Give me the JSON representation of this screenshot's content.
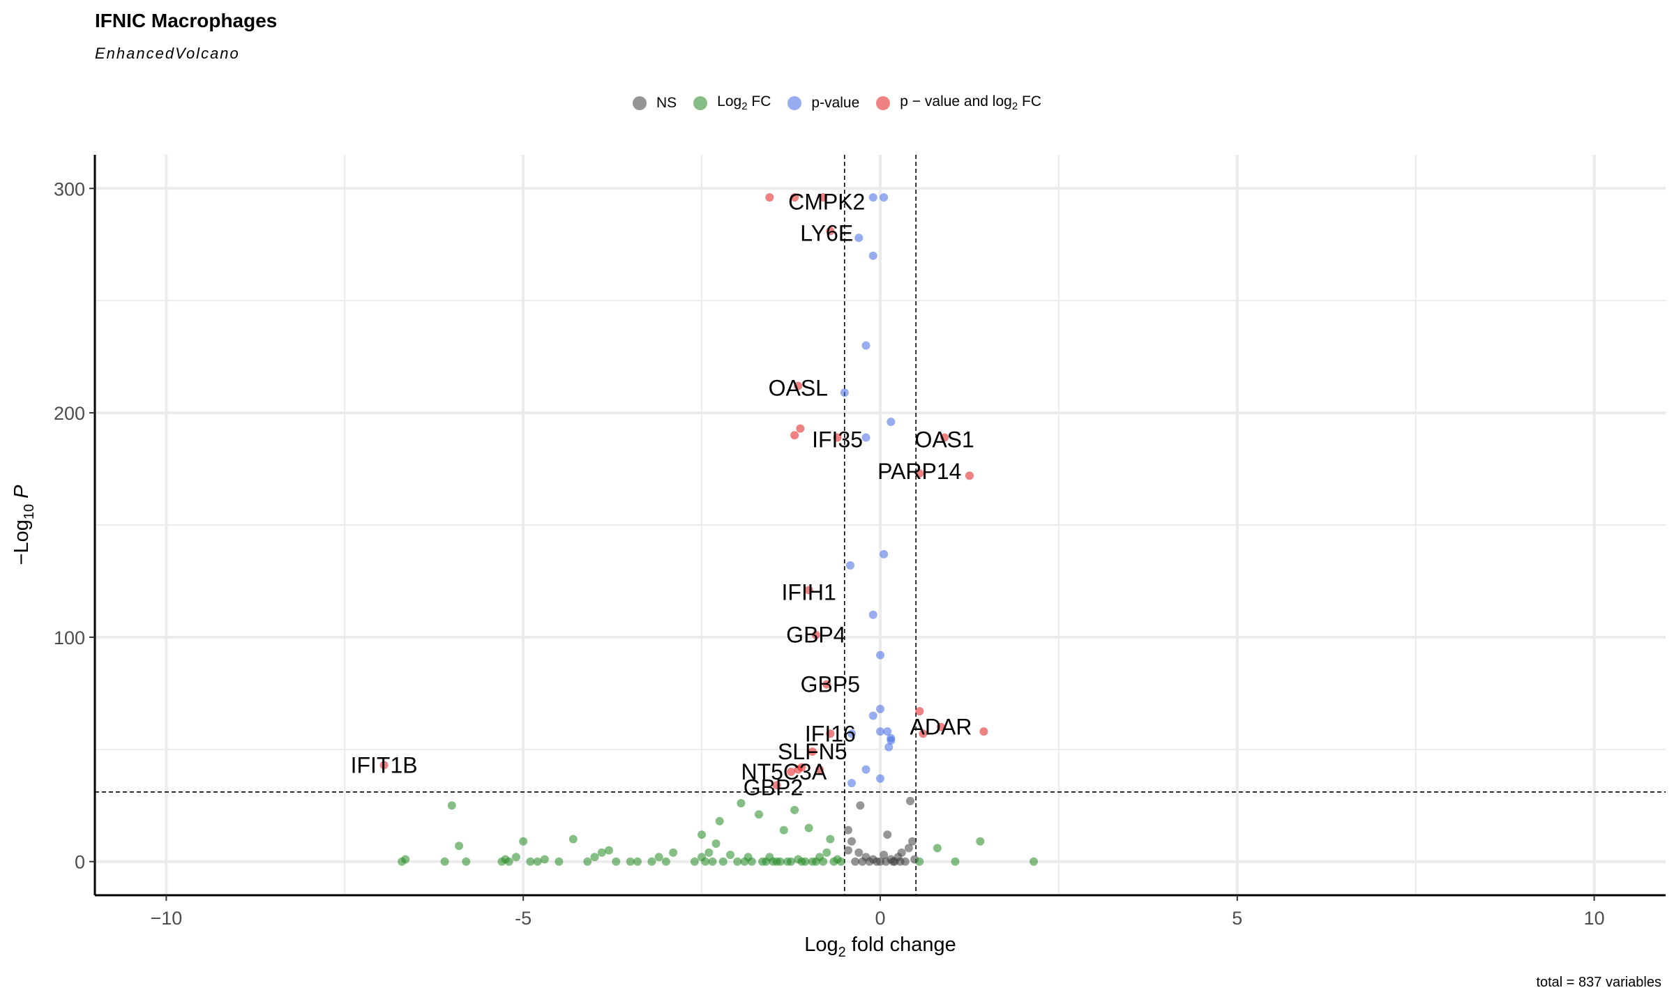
{
  "chart_data": {
    "type": "scatter",
    "title": "IFNIC Macrophages",
    "subtitle": "EnhancedVolcano",
    "caption": "total = 837 variables",
    "xlabel": {
      "prefix": "Log",
      "sub": "2",
      "suffix": " fold change"
    },
    "ylabel": {
      "prefix": "−Log",
      "sub": "10",
      "suffix": " P"
    },
    "xlim": [
      -11,
      11
    ],
    "ylim": [
      -15,
      315
    ],
    "x_ticks": [
      -10,
      -5,
      0,
      5,
      10
    ],
    "x_tick_labels": [
      "−10",
      "-5",
      "0",
      "5",
      "10"
    ],
    "y_ticks": [
      0,
      100,
      200,
      300
    ],
    "y_tick_labels": [
      "0",
      "100",
      "200",
      "300"
    ],
    "fc_cutoffs": [
      -0.5,
      0.5
    ],
    "p_cutoff": 31,
    "legend_position": "top",
    "legend": [
      {
        "key": "NS",
        "text": "NS",
        "sub": "",
        "suffix": "",
        "color": "#404040"
      },
      {
        "key": "FC",
        "text": "Log",
        "sub": "2",
        "suffix": " FC",
        "color": "#228B22"
      },
      {
        "key": "P",
        "text": "p-value",
        "sub": "",
        "suffix": "",
        "color": "#4169E1"
      },
      {
        "key": "PFC",
        "text": "p − value and log",
        "sub": "2",
        "suffix": " FC",
        "color": "#E41A1C"
      }
    ],
    "series": [
      {
        "name": "NS",
        "color": "#404040",
        "points": [
          [
            -0.45,
            14
          ],
          [
            -0.45,
            5
          ],
          [
            -0.3,
            4
          ],
          [
            -0.28,
            25
          ],
          [
            -0.2,
            2
          ],
          [
            -0.1,
            1
          ],
          [
            -0.05,
            0
          ],
          [
            0.0,
            0
          ],
          [
            0.05,
            3
          ],
          [
            0.1,
            12
          ],
          [
            0.15,
            1
          ],
          [
            0.2,
            0
          ],
          [
            0.25,
            2
          ],
          [
            0.3,
            4
          ],
          [
            0.35,
            0
          ],
          [
            0.4,
            6
          ],
          [
            0.42,
            27
          ],
          [
            0.45,
            9
          ],
          [
            0.48,
            1
          ],
          [
            -0.4,
            9
          ],
          [
            -0.15,
            0
          ],
          [
            0.08,
            0
          ],
          [
            -0.35,
            0
          ],
          [
            0.28,
            0
          ],
          [
            -0.25,
            0
          ],
          [
            0.18,
            0
          ]
        ]
      },
      {
        "name": "Log2 FC",
        "color": "#228B22",
        "points": [
          [
            -6.7,
            0
          ],
          [
            -6.65,
            1
          ],
          [
            -6.1,
            0
          ],
          [
            -6.0,
            25
          ],
          [
            -5.9,
            7
          ],
          [
            -5.8,
            0
          ],
          [
            -5.3,
            0
          ],
          [
            -5.25,
            1
          ],
          [
            -5.2,
            0
          ],
          [
            -5.1,
            2
          ],
          [
            -5.0,
            9
          ],
          [
            -4.9,
            0
          ],
          [
            -4.8,
            0
          ],
          [
            -4.7,
            1
          ],
          [
            -4.5,
            0
          ],
          [
            -4.3,
            10
          ],
          [
            -4.1,
            0
          ],
          [
            -4.0,
            2
          ],
          [
            -3.9,
            4
          ],
          [
            -3.8,
            5
          ],
          [
            -3.7,
            0
          ],
          [
            -3.5,
            0
          ],
          [
            -3.4,
            0
          ],
          [
            -3.2,
            0
          ],
          [
            -3.1,
            2
          ],
          [
            -3.0,
            0
          ],
          [
            -2.9,
            4
          ],
          [
            -2.6,
            0
          ],
          [
            -2.5,
            2
          ],
          [
            -2.5,
            12
          ],
          [
            -2.45,
            0
          ],
          [
            -2.4,
            4
          ],
          [
            -2.35,
            0
          ],
          [
            -2.3,
            8
          ],
          [
            -2.25,
            18
          ],
          [
            -2.2,
            0
          ],
          [
            -2.1,
            3
          ],
          [
            -2.0,
            0
          ],
          [
            -1.95,
            26
          ],
          [
            -1.9,
            0
          ],
          [
            -1.85,
            2
          ],
          [
            -1.8,
            0
          ],
          [
            -1.7,
            21
          ],
          [
            -1.65,
            0
          ],
          [
            -1.6,
            0
          ],
          [
            -1.55,
            2
          ],
          [
            -1.5,
            0
          ],
          [
            -1.45,
            0
          ],
          [
            -1.4,
            0
          ],
          [
            -1.35,
            14
          ],
          [
            -1.3,
            0
          ],
          [
            -1.25,
            0
          ],
          [
            -1.2,
            23
          ],
          [
            -1.15,
            1
          ],
          [
            -1.1,
            0
          ],
          [
            -1.05,
            0
          ],
          [
            -1.0,
            15
          ],
          [
            -0.95,
            0
          ],
          [
            -0.9,
            0
          ],
          [
            -0.85,
            2
          ],
          [
            -0.8,
            0
          ],
          [
            -0.75,
            4
          ],
          [
            -0.7,
            10
          ],
          [
            -0.65,
            0
          ],
          [
            -0.6,
            1
          ],
          [
            -0.55,
            0
          ],
          [
            0.55,
            0
          ],
          [
            0.8,
            6
          ],
          [
            1.05,
            0
          ],
          [
            1.4,
            9
          ],
          [
            2.15,
            0
          ]
        ]
      },
      {
        "name": "p-value",
        "color": "#4169E1",
        "points": [
          [
            -0.1,
            296
          ],
          [
            0.05,
            296
          ],
          [
            -0.3,
            278
          ],
          [
            -0.1,
            270
          ],
          [
            -0.2,
            230
          ],
          [
            -0.5,
            209
          ],
          [
            0.15,
            196
          ],
          [
            -0.2,
            189
          ],
          [
            0.05,
            137
          ],
          [
            -0.42,
            132
          ],
          [
            -0.1,
            110
          ],
          [
            0.0,
            92
          ],
          [
            0.0,
            68
          ],
          [
            -0.1,
            65
          ],
          [
            0.0,
            58
          ],
          [
            0.1,
            58
          ],
          [
            0.15,
            55
          ],
          [
            -0.4,
            57
          ],
          [
            0.12,
            51
          ],
          [
            -0.2,
            41
          ],
          [
            0.0,
            37
          ],
          [
            -0.4,
            35
          ],
          [
            0.15,
            54
          ]
        ]
      },
      {
        "name": "p − value and log2 FC",
        "color": "#E41A1C",
        "points": [
          [
            -1.55,
            296
          ],
          [
            -1.2,
            296
          ],
          [
            -0.8,
            296
          ],
          [
            -0.7,
            281
          ],
          [
            -1.15,
            212
          ],
          [
            -1.12,
            193
          ],
          [
            -1.2,
            190
          ],
          [
            -0.6,
            189
          ],
          [
            0.9,
            189
          ],
          [
            1.25,
            172
          ],
          [
            0.55,
            173
          ],
          [
            -1.0,
            121
          ],
          [
            -0.9,
            101
          ],
          [
            -0.75,
            79
          ],
          [
            0.55,
            67
          ],
          [
            0.85,
            60
          ],
          [
            1.45,
            58
          ],
          [
            0.6,
            57
          ],
          [
            -0.7,
            57
          ],
          [
            -0.95,
            49
          ],
          [
            -1.1,
            42
          ],
          [
            -1.15,
            41
          ],
          [
            -1.25,
            40
          ],
          [
            -0.85,
            41
          ],
          [
            -1.45,
            34
          ],
          [
            -6.95,
            43
          ]
        ]
      }
    ],
    "labels": [
      {
        "gene": "CMPK2",
        "x": -0.75,
        "y": 294
      },
      {
        "gene": "LY6E",
        "x": -0.75,
        "y": 280
      },
      {
        "gene": "OASL",
        "x": -1.15,
        "y": 211
      },
      {
        "gene": "IFI35",
        "x": -0.6,
        "y": 188
      },
      {
        "gene": "OAS1",
        "x": 0.9,
        "y": 188
      },
      {
        "gene": "PARP14",
        "x": 0.55,
        "y": 174
      },
      {
        "gene": "IFIH1",
        "x": -1.0,
        "y": 120
      },
      {
        "gene": "GBP4",
        "x": -0.9,
        "y": 101
      },
      {
        "gene": "GBP5",
        "x": -0.7,
        "y": 79
      },
      {
        "gene": "ADAR",
        "x": 0.85,
        "y": 60
      },
      {
        "gene": "IFI16",
        "x": -0.7,
        "y": 57
      },
      {
        "gene": "SLFN5",
        "x": -0.95,
        "y": 49
      },
      {
        "gene": "IFIT1B",
        "x": -6.95,
        "y": 43
      },
      {
        "gene": "NT5C3A",
        "x": -1.35,
        "y": 40
      },
      {
        "gene": "GBP2",
        "x": -1.5,
        "y": 33
      }
    ]
  }
}
